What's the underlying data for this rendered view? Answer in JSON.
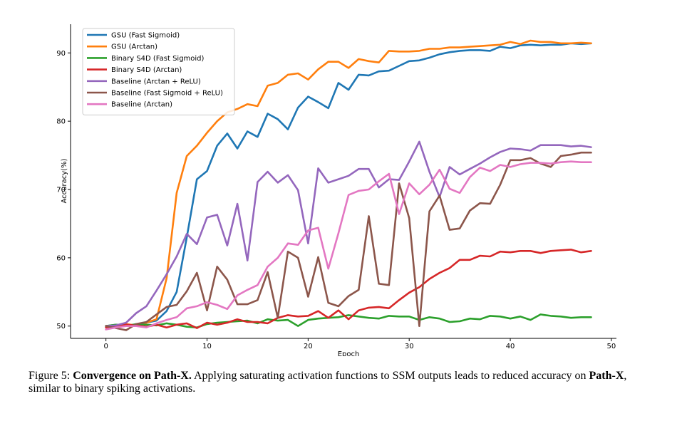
{
  "chart_data": {
    "type": "line",
    "xlabel": "Epoch",
    "ylabel": "Accuracy(%)",
    "xlim": [
      -3.5,
      50.5
    ],
    "ylim": [
      48.2,
      94.2
    ],
    "xticks": [
      0,
      10,
      20,
      30,
      40,
      50
    ],
    "yticks": [
      50,
      60,
      70,
      80,
      90
    ],
    "grid": false,
    "legend_position": "top-left",
    "series": [
      {
        "name": "GSU (Fast Sigmoid)",
        "color": "#1f77b4",
        "x": [
          0,
          1,
          2,
          3,
          4,
          5,
          6,
          7,
          8,
          9,
          10,
          11,
          12,
          13,
          14,
          15,
          16,
          17,
          18,
          19,
          20,
          21,
          22,
          23,
          24,
          25,
          26,
          27,
          28,
          29,
          30,
          31,
          32,
          33,
          34,
          35,
          36,
          37,
          38,
          39,
          40,
          41,
          42,
          43,
          44,
          45,
          46,
          47,
          48
        ],
        "values": [
          50.0,
          50.2,
          50.1,
          50.2,
          50.5,
          50.8,
          52.2,
          55.0,
          63.0,
          71.5,
          72.7,
          76.4,
          78.2,
          76.0,
          78.5,
          77.7,
          81.1,
          80.3,
          78.8,
          82.0,
          83.6,
          82.8,
          81.9,
          85.6,
          84.6,
          86.8,
          86.7,
          87.3,
          87.4,
          88.1,
          88.8,
          88.9,
          89.3,
          89.8,
          90.1,
          90.3,
          90.4,
          90.4,
          90.3,
          90.9,
          90.7,
          91.1,
          91.2,
          91.1,
          91.2,
          91.2,
          91.4,
          91.3,
          91.4
        ]
      },
      {
        "name": "GSU (Arctan)",
        "color": "#ff7f0e",
        "x": [
          0,
          1,
          2,
          3,
          4,
          5,
          6,
          7,
          8,
          9,
          10,
          11,
          12,
          13,
          14,
          15,
          16,
          17,
          18,
          19,
          20,
          21,
          22,
          23,
          24,
          25,
          26,
          27,
          28,
          29,
          30,
          31,
          32,
          33,
          34,
          35,
          36,
          37,
          38,
          39,
          40,
          41,
          42,
          43,
          44,
          45,
          46,
          47,
          48
        ],
        "values": [
          50.0,
          50.1,
          50.3,
          50.1,
          50.5,
          51.0,
          57.0,
          69.5,
          74.9,
          76.4,
          78.3,
          80.0,
          81.3,
          81.8,
          82.5,
          82.2,
          85.2,
          85.6,
          86.8,
          87.0,
          86.1,
          87.6,
          88.7,
          88.7,
          87.8,
          89.1,
          88.8,
          88.6,
          90.3,
          90.2,
          90.2,
          90.3,
          90.6,
          90.6,
          90.8,
          90.8,
          90.9,
          91.0,
          91.1,
          91.2,
          91.6,
          91.3,
          91.8,
          91.6,
          91.6,
          91.4,
          91.4,
          91.5,
          91.4
        ]
      },
      {
        "name": "Binary S4D (Fast Sigmoid)",
        "color": "#2ca02c",
        "x": [
          0,
          1,
          2,
          3,
          4,
          5,
          6,
          7,
          8,
          9,
          10,
          11,
          12,
          13,
          14,
          15,
          16,
          17,
          18,
          19,
          20,
          21,
          22,
          23,
          24,
          25,
          26,
          27,
          28,
          29,
          30,
          31,
          32,
          33,
          34,
          35,
          36,
          37,
          38,
          39,
          40,
          41,
          42,
          43,
          44,
          45,
          46,
          47,
          48
        ],
        "values": [
          50.0,
          50.2,
          50.0,
          50.3,
          50.2,
          50.1,
          50.4,
          50.2,
          49.9,
          49.8,
          50.3,
          50.5,
          50.6,
          50.7,
          50.8,
          50.4,
          51.0,
          50.8,
          50.9,
          50.0,
          50.9,
          51.1,
          51.2,
          51.3,
          51.6,
          51.4,
          51.2,
          51.1,
          51.5,
          51.4,
          51.4,
          50.9,
          51.3,
          51.1,
          50.6,
          50.7,
          51.1,
          51.0,
          51.5,
          51.4,
          51.1,
          51.4,
          50.9,
          51.7,
          51.5,
          51.4,
          51.2,
          51.3,
          51.3
        ]
      },
      {
        "name": "Binary S4D (Arctan)",
        "color": "#d62728",
        "x": [
          0,
          1,
          2,
          3,
          4,
          5,
          6,
          7,
          8,
          9,
          10,
          11,
          12,
          13,
          14,
          15,
          16,
          17,
          18,
          19,
          20,
          21,
          22,
          23,
          24,
          25,
          26,
          27,
          28,
          29,
          30,
          31,
          32,
          33,
          34,
          35,
          36,
          37,
          38,
          39,
          40,
          41,
          42,
          43,
          44,
          45,
          46,
          47,
          48
        ],
        "values": [
          49.8,
          50.0,
          50.2,
          50.1,
          49.9,
          50.2,
          49.8,
          50.2,
          50.4,
          49.7,
          50.5,
          50.2,
          50.5,
          51.0,
          50.6,
          50.6,
          50.4,
          51.2,
          51.6,
          51.4,
          51.5,
          52.2,
          51.2,
          52.3,
          51.0,
          52.3,
          52.7,
          52.8,
          52.6,
          53.8,
          54.9,
          55.7,
          56.9,
          57.8,
          58.5,
          59.7,
          59.7,
          60.3,
          60.2,
          60.9,
          60.8,
          61.0,
          61.0,
          60.7,
          61.0,
          61.1,
          61.2,
          60.8,
          61.0
        ]
      },
      {
        "name": "Baseline (Arctan + ReLU)",
        "color": "#9467bd",
        "x": [
          0,
          1,
          2,
          3,
          4,
          5,
          6,
          7,
          8,
          9,
          10,
          11,
          12,
          13,
          14,
          15,
          16,
          17,
          18,
          19,
          20,
          21,
          22,
          23,
          24,
          25,
          26,
          27,
          28,
          29,
          30,
          31,
          32,
          33,
          34,
          35,
          36,
          37,
          38,
          39,
          40,
          41,
          42,
          43,
          44,
          45,
          46,
          47,
          48
        ],
        "values": [
          50.0,
          50.1,
          50.5,
          51.9,
          52.9,
          55.2,
          57.6,
          60.2,
          63.5,
          62.0,
          65.9,
          66.3,
          61.8,
          67.9,
          59.6,
          71.1,
          72.6,
          71.0,
          72.1,
          69.9,
          62.1,
          73.1,
          71.0,
          71.5,
          72.0,
          73.0,
          73.0,
          70.3,
          71.5,
          71.4,
          74.1,
          77.0,
          72.6,
          68.9,
          73.3,
          72.2,
          73.0,
          73.8,
          74.7,
          75.5,
          76.0,
          75.9,
          75.7,
          76.5,
          76.5,
          76.5,
          76.3,
          76.4,
          76.2
        ]
      },
      {
        "name": "Baseline (Fast Sigmoid + ReLU)",
        "color": "#8c564b",
        "x": [
          0,
          1,
          2,
          3,
          4,
          5,
          6,
          7,
          8,
          9,
          10,
          11,
          12,
          13,
          14,
          15,
          16,
          17,
          18,
          19,
          20,
          21,
          22,
          23,
          24,
          25,
          26,
          27,
          28,
          29,
          30,
          31,
          32,
          33,
          34,
          35,
          36,
          37,
          38,
          39,
          40,
          41,
          42,
          43,
          44,
          45,
          46,
          47,
          48
        ],
        "values": [
          50.0,
          49.7,
          49.4,
          50.3,
          50.6,
          51.7,
          52.8,
          53.1,
          55.1,
          57.8,
          52.3,
          58.7,
          56.8,
          53.2,
          53.2,
          53.8,
          57.9,
          51.2,
          60.9,
          60.0,
          54.3,
          60.1,
          53.4,
          52.9,
          54.4,
          55.3,
          66.1,
          56.2,
          56.0,
          70.9,
          65.8,
          50.0,
          66.8,
          69.1,
          64.1,
          64.3,
          66.9,
          68.0,
          67.9,
          70.7,
          74.3,
          74.3,
          74.6,
          73.8,
          73.3,
          74.9,
          75.1,
          75.4,
          75.4
        ]
      },
      {
        "name": "Baseline (Arctan)",
        "color": "#e377c2",
        "x": [
          0,
          1,
          2,
          3,
          4,
          5,
          6,
          7,
          8,
          9,
          10,
          11,
          12,
          13,
          14,
          15,
          16,
          17,
          18,
          19,
          20,
          21,
          22,
          23,
          24,
          25,
          26,
          27,
          28,
          29,
          30,
          31,
          32,
          33,
          34,
          35,
          36,
          37,
          38,
          39,
          40,
          41,
          42,
          43,
          44,
          45,
          46,
          47,
          48
        ],
        "values": [
          49.5,
          49.8,
          50.0,
          50.0,
          49.8,
          50.4,
          50.9,
          51.3,
          52.6,
          52.9,
          53.5,
          53.1,
          52.5,
          54.5,
          55.3,
          56.0,
          58.7,
          60.0,
          62.1,
          61.9,
          64.0,
          64.4,
          58.4,
          63.6,
          69.2,
          69.8,
          70.0,
          71.2,
          72.3,
          66.4,
          70.9,
          69.3,
          70.7,
          72.9,
          70.1,
          69.5,
          71.8,
          73.2,
          72.7,
          73.6,
          73.3,
          73.7,
          73.9,
          73.9,
          73.8,
          74.0,
          74.1,
          74.0,
          74.0
        ]
      }
    ]
  },
  "caption": {
    "label": "Figure 5:",
    "bold_title": "Convergence on Path-X.",
    "text_1": "Applying saturating activation functions to SSM outputs leads to reduced accuracy on",
    "bold_term": "Path-X",
    "text_2": ", similar to binary spiking activations."
  }
}
